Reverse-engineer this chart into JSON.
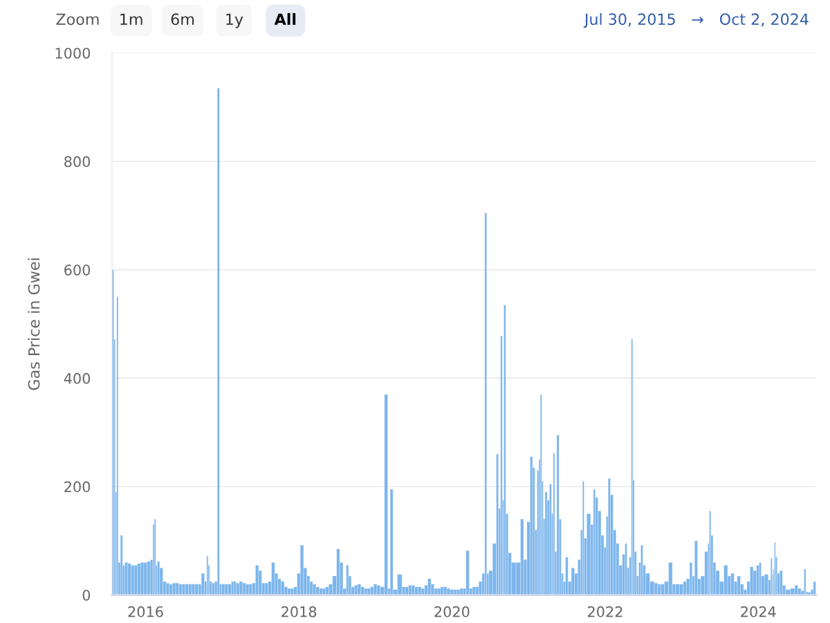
{
  "chart_data": {
    "type": "bar",
    "ylabel": "Gas Price in Gwei",
    "color": "#7cb5ec",
    "annotations": [
      "Zoom",
      "1m",
      "6m",
      "1y",
      "All",
      "Jul 30, 2015",
      "→",
      "Oct 2, 2024"
    ],
    "xlim": [
      "2015-07-25",
      "2024-10-02"
    ],
    "xticks": [
      "2016",
      "2018",
      "2020",
      "2022",
      "2024"
    ],
    "ylim": [
      0,
      1000
    ],
    "yticks": [
      0,
      200,
      400,
      600,
      800,
      1000
    ],
    "grid": "y",
    "x": [
      "2015-07-30",
      "2015-08-06",
      "2015-08-13",
      "2015-08-20",
      "2015-08-27",
      "2015-09-10",
      "2015-09-17",
      "2015-10-01",
      "2015-10-15",
      "2015-11-01",
      "2015-11-15",
      "2015-12-01",
      "2015-12-15",
      "2016-01-01",
      "2016-01-15",
      "2016-02-01",
      "2016-02-08",
      "2016-02-15",
      "2016-02-22",
      "2016-03-01",
      "2016-03-15",
      "2016-04-01",
      "2016-04-15",
      "2016-05-01",
      "2016-05-15",
      "2016-06-01",
      "2016-06-15",
      "2016-07-01",
      "2016-07-15",
      "2016-08-01",
      "2016-08-15",
      "2016-09-01",
      "2016-09-15",
      "2016-10-01",
      "2016-10-15",
      "2016-10-22",
      "2016-10-29",
      "2016-11-05",
      "2016-11-20",
      "2016-12-01",
      "2016-12-15",
      "2016-12-22",
      "2017-01-05",
      "2017-01-20",
      "2017-02-05",
      "2017-02-20",
      "2017-03-01",
      "2017-03-15",
      "2017-04-01",
      "2017-04-15",
      "2017-05-01",
      "2017-05-15",
      "2017-06-01",
      "2017-06-15",
      "2017-07-01",
      "2017-07-15",
      "2017-08-01",
      "2017-08-15",
      "2017-09-01",
      "2017-09-15",
      "2017-10-01",
      "2017-10-15",
      "2017-11-01",
      "2017-11-15",
      "2017-12-01",
      "2017-12-15",
      "2018-01-01",
      "2018-01-15",
      "2018-02-01",
      "2018-02-15",
      "2018-03-01",
      "2018-03-15",
      "2018-04-01",
      "2018-04-15",
      "2018-05-01",
      "2018-05-15",
      "2018-06-01",
      "2018-06-20",
      "2018-07-10",
      "2018-07-20",
      "2018-08-10",
      "2018-08-20",
      "2018-09-01",
      "2018-09-15",
      "2018-10-01",
      "2018-10-15",
      "2018-11-01",
      "2018-11-15",
      "2018-12-01",
      "2018-12-15",
      "2019-01-01",
      "2019-01-15",
      "2019-02-01",
      "2019-02-25",
      "2019-03-05",
      "2019-03-20",
      "2019-04-01",
      "2019-05-01",
      "2019-05-15",
      "2019-06-01",
      "2019-06-15",
      "2019-07-01",
      "2019-07-15",
      "2019-08-01",
      "2019-08-15",
      "2019-09-01",
      "2019-09-15",
      "2019-10-01",
      "2019-10-15",
      "2019-11-01",
      "2019-11-15",
      "2019-12-01",
      "2019-12-15",
      "2020-01-01",
      "2020-01-15",
      "2020-02-01",
      "2020-02-15",
      "2020-03-01",
      "2020-03-15",
      "2020-04-01",
      "2020-04-15",
      "2020-05-01",
      "2020-05-15",
      "2020-06-01",
      "2020-06-10",
      "2020-06-20",
      "2020-07-01",
      "2020-07-25",
      "2020-08-05",
      "2020-08-15",
      "2020-08-25",
      "2020-09-01",
      "2020-09-08",
      "2020-09-20",
      "2020-10-01",
      "2020-10-20",
      "2020-11-15",
      "2020-12-01",
      "2020-12-15",
      "2021-01-01",
      "2021-01-15",
      "2021-01-25",
      "2021-02-05",
      "2021-02-15",
      "2021-02-22",
      "2021-03-01",
      "2021-03-08",
      "2021-03-15",
      "2021-03-25",
      "2021-04-05",
      "2021-04-15",
      "2021-04-25",
      "2021-05-01",
      "2021-05-10",
      "2021-05-20",
      "2021-06-01",
      "2021-06-10",
      "2021-06-20",
      "2021-07-01",
      "2021-07-15",
      "2021-08-01",
      "2021-08-15",
      "2021-09-01",
      "2021-09-10",
      "2021-09-20",
      "2021-09-25",
      "2021-10-15",
      "2021-11-01",
      "2021-11-10",
      "2021-11-20",
      "2021-12-05",
      "2021-12-20",
      "2022-01-01",
      "2022-01-10",
      "2022-01-20",
      "2022-02-01",
      "2022-02-15",
      "2022-03-01",
      "2022-03-15",
      "2022-04-01",
      "2022-04-10",
      "2022-04-20",
      "2022-05-01",
      "2022-05-10",
      "2022-05-15",
      "2022-05-25",
      "2022-06-05",
      "2022-06-15",
      "2022-06-25",
      "2022-07-05",
      "2022-07-20",
      "2022-08-15",
      "2022-09-01",
      "2022-09-15",
      "2022-10-01",
      "2022-10-20",
      "2022-11-10",
      "2022-11-25",
      "2022-12-10",
      "2023-01-01",
      "2023-01-15",
      "2023-02-01",
      "2023-02-15",
      "2023-02-25",
      "2023-03-10",
      "2023-03-25",
      "2023-04-10",
      "2023-05-01",
      "2023-05-10",
      "2023-05-15",
      "2023-05-25",
      "2023-06-05",
      "2023-06-20",
      "2023-07-10",
      "2023-08-01",
      "2023-08-15",
      "2023-09-01",
      "2023-09-15",
      "2023-10-01",
      "2023-10-15",
      "2023-11-01",
      "2023-11-15",
      "2023-12-01",
      "2023-12-15",
      "2024-01-01",
      "2024-01-10",
      "2024-01-20",
      "2024-02-10",
      "2024-02-25",
      "2024-03-05",
      "2024-03-10",
      "2024-03-15",
      "2024-03-20",
      "2024-03-27",
      "2024-04-05",
      "2024-04-20",
      "2024-05-01",
      "2024-05-20",
      "2024-06-15",
      "2024-07-01",
      "2024-07-15",
      "2024-08-01",
      "2024-08-12",
      "2024-08-18",
      "2024-09-01",
      "2024-09-15",
      "2024-09-25"
    ],
    "values": [
      600,
      472,
      190,
      550,
      60,
      110,
      55,
      60,
      58,
      55,
      55,
      58,
      60,
      60,
      62,
      65,
      130,
      140,
      55,
      62,
      50,
      25,
      22,
      20,
      22,
      22,
      20,
      20,
      20,
      20,
      20,
      20,
      20,
      40,
      25,
      72,
      55,
      25,
      22,
      25,
      935,
      20,
      20,
      20,
      20,
      25,
      25,
      22,
      25,
      22,
      20,
      20,
      22,
      55,
      45,
      22,
      22,
      25,
      60,
      40,
      30,
      25,
      15,
      12,
      12,
      15,
      40,
      92,
      50,
      35,
      25,
      20,
      15,
      12,
      12,
      15,
      20,
      35,
      85,
      60,
      12,
      55,
      35,
      15,
      18,
      20,
      15,
      12,
      12,
      15,
      20,
      18,
      15,
      370,
      12,
      195,
      10,
      38,
      15,
      15,
      18,
      18,
      15,
      15,
      12,
      18,
      30,
      20,
      12,
      12,
      15,
      15,
      12,
      10,
      10,
      10,
      12,
      12,
      82,
      12,
      15,
      15,
      25,
      40,
      705,
      40,
      45,
      95,
      260,
      160,
      478,
      175,
      535,
      150,
      78,
      60,
      60,
      140,
      65,
      135,
      255,
      235,
      120,
      230,
      250,
      370,
      210,
      140,
      190,
      175,
      205,
      150,
      262,
      80,
      295,
      140,
      40,
      25,
      70,
      25,
      50,
      40,
      65,
      120,
      210,
      105,
      150,
      130,
      195,
      180,
      155,
      110,
      88,
      145,
      215,
      185,
      120,
      95,
      55,
      75,
      95,
      50,
      70,
      472,
      212,
      80,
      35,
      60,
      92,
      55,
      40,
      25,
      22,
      20,
      20,
      25,
      60,
      20,
      20,
      20,
      25,
      30,
      60,
      35,
      100,
      30,
      35,
      80,
      95,
      155,
      110,
      60,
      45,
      25,
      55,
      35,
      40,
      25,
      35,
      20,
      10,
      25,
      52,
      45,
      55,
      60,
      35,
      38,
      28,
      68,
      38,
      48,
      97,
      70,
      40,
      45,
      18,
      10,
      12,
      18,
      12,
      8,
      48,
      6,
      5,
      10,
      25
    ]
  }
}
